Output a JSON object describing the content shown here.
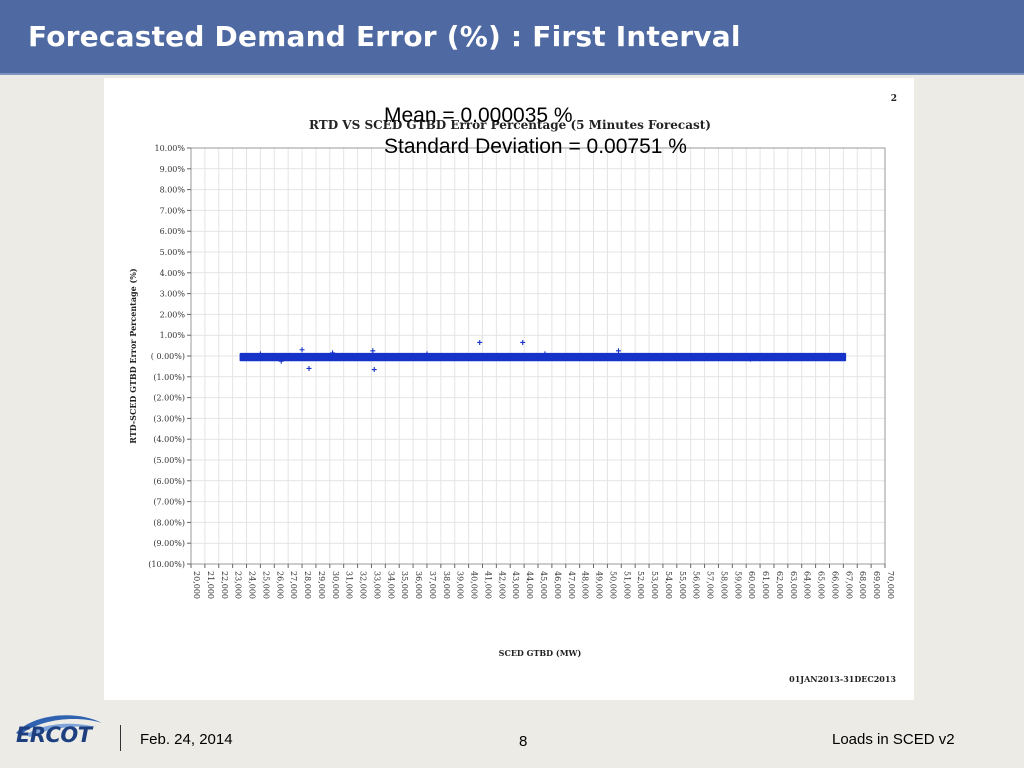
{
  "slide": {
    "title": "Forecasted Demand Error (%) : First Interval",
    "stats_mean": "Mean = 0.000035 %",
    "stats_std": "Standard Deviation = 0.00751 %"
  },
  "footer": {
    "logo_text": "ERCOT",
    "date": "Feb. 24, 2014",
    "page": "8",
    "right_text": "Loads in SCED v2"
  },
  "colors": {
    "title_bar": "#4f69a2",
    "series": "#1533c9"
  },
  "chart_data": {
    "type": "scatter",
    "title": "RTD VS SCED GTBD Error Percentage (5 Minutes Forecast)",
    "page_marker": "2",
    "xlabel": "SCED GTBD (MW)",
    "ylabel": "RTD-SCED GTBD Error Percentage (%)",
    "date_range": "01JAN2013-31DEC2013",
    "xlim": [
      20000,
      70000
    ],
    "ylim": [
      -10,
      10
    ],
    "grid": true,
    "x_ticks": [
      20000,
      21000,
      22000,
      23000,
      24000,
      25000,
      26000,
      27000,
      28000,
      29000,
      30000,
      31000,
      32000,
      33000,
      34000,
      35000,
      36000,
      37000,
      38000,
      39000,
      40000,
      41000,
      42000,
      43000,
      44000,
      45000,
      46000,
      47000,
      48000,
      49000,
      50000,
      51000,
      52000,
      53000,
      54000,
      55000,
      56000,
      57000,
      58000,
      59000,
      60000,
      61000,
      62000,
      63000,
      64000,
      65000,
      66000,
      67000,
      68000,
      69000,
      70000
    ],
    "x_tick_labels": [
      "20,000",
      "21,000",
      "22,000",
      "23,000",
      "24,000",
      "25,000",
      "26,000",
      "27,000",
      "28,000",
      "29,000",
      "30,000",
      "31,000",
      "32,000",
      "33,000",
      "34,000",
      "35,000",
      "36,000",
      "37,000",
      "38,000",
      "39,000",
      "40,000",
      "41,000",
      "42,000",
      "43,000",
      "44,000",
      "45,000",
      "46,000",
      "47,000",
      "48,000",
      "49,000",
      "50,000",
      "51,000",
      "52,000",
      "53,000",
      "54,000",
      "55,000",
      "56,000",
      "57,000",
      "58,000",
      "59,000",
      "60,000",
      "61,000",
      "62,000",
      "63,000",
      "64,000",
      "65,000",
      "66,000",
      "67,000",
      "68,000",
      "69,000",
      "70,000"
    ],
    "y_ticks": [
      10,
      9,
      8,
      7,
      6,
      5,
      4,
      3,
      2,
      1,
      0,
      -1,
      -2,
      -3,
      -4,
      -5,
      -6,
      -7,
      -8,
      -9,
      -10
    ],
    "y_tick_labels": [
      "10.00%",
      "9.00%",
      "8.00%",
      "7.00%",
      "6.00%",
      "5.00%",
      "4.00%",
      "3.00%",
      "2.00%",
      "1.00%",
      "( 0.00%)",
      "(1.00%)",
      "(2.00%)",
      "(3.00%)",
      "(4.00%)",
      "(5.00%)",
      "(6.00%)",
      "(7.00%)",
      "(8.00%)",
      "(9.00%)",
      "(10.00%)"
    ],
    "series": [
      {
        "band_x": [
          23500,
          67200
        ],
        "band_y": [
          -0.25,
          0.15
        ],
        "points": [
          {
            "x": 28000,
            "y": 0.3
          },
          {
            "x": 28500,
            "y": -0.6
          },
          {
            "x": 33100,
            "y": 0.25
          },
          {
            "x": 33200,
            "y": -0.65
          },
          {
            "x": 40800,
            "y": 0.65
          },
          {
            "x": 43900,
            "y": 0.65
          },
          {
            "x": 50800,
            "y": 0.25
          },
          {
            "x": 25000,
            "y": 0.1
          },
          {
            "x": 26500,
            "y": -0.25
          },
          {
            "x": 30200,
            "y": 0.15
          },
          {
            "x": 37000,
            "y": 0.1
          },
          {
            "x": 45500,
            "y": 0.1
          },
          {
            "x": 60300,
            "y": -0.15
          }
        ]
      }
    ]
  }
}
